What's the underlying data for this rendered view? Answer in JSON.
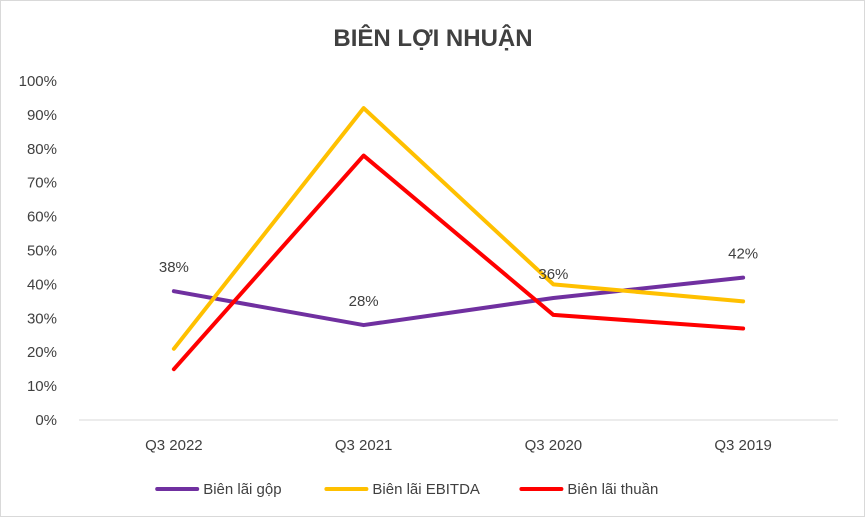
{
  "chart_data": {
    "type": "line",
    "title": "BIÊN LỢI NHUẬN",
    "categories": [
      "Q3 2022",
      "Q3 2021",
      "Q3 2020",
      "Q3 2019"
    ],
    "ylim": [
      0,
      100
    ],
    "yticks": [
      0,
      10,
      20,
      30,
      40,
      50,
      60,
      70,
      80,
      90,
      100
    ],
    "ytick_suffix": "%",
    "grid": false,
    "legend_position": "bottom",
    "series": [
      {
        "name": "Biên lãi gộp",
        "color": "#7030a0",
        "values": [
          38,
          28,
          36,
          42
        ],
        "data_labels": [
          "38%",
          "28%",
          "36%",
          "42%"
        ]
      },
      {
        "name": "Biên lãi EBITDA",
        "color": "#ffc000",
        "values": [
          21,
          92,
          40,
          35
        ]
      },
      {
        "name": "Biên lãi thuần",
        "color": "#ff0000",
        "values": [
          15,
          78,
          31,
          27
        ]
      }
    ]
  }
}
